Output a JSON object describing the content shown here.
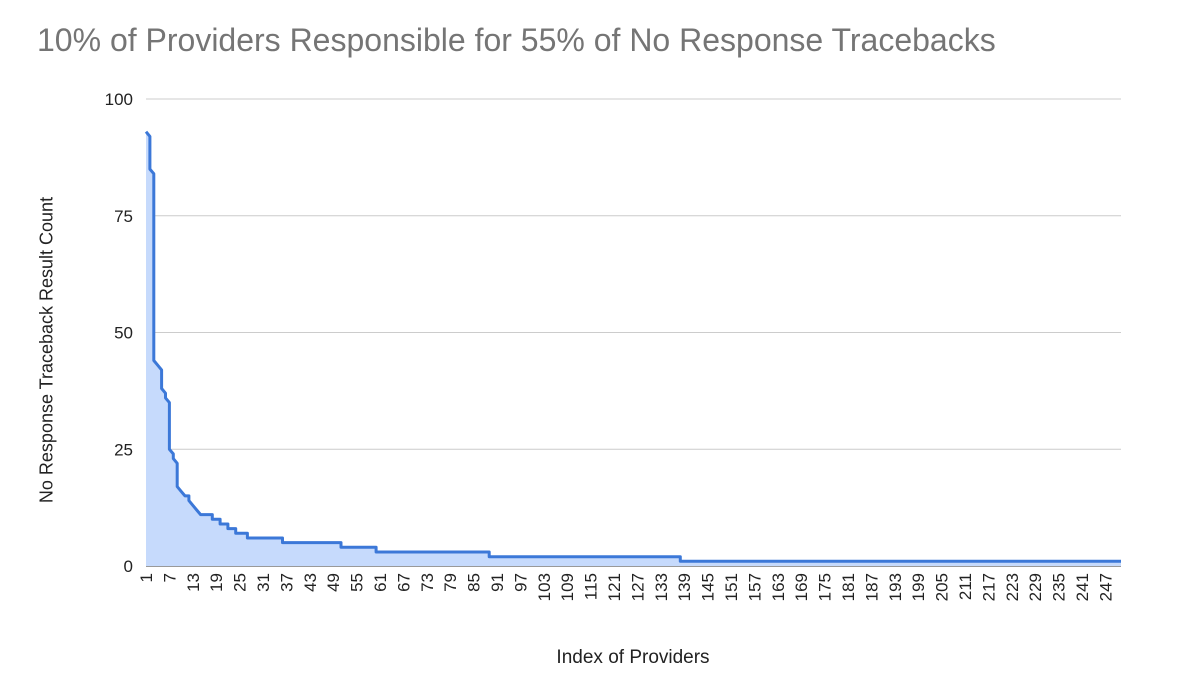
{
  "chart_data": {
    "type": "area",
    "title": "10% of Providers Responsible for 55% of No Response Tracebacks",
    "xlabel": "Index of Providers",
    "ylabel": "No Response Traceback Result Count",
    "ylim": [
      0,
      100
    ],
    "xlim": [
      1,
      251
    ],
    "y_ticks": [
      "0",
      "25",
      "50",
      "75",
      "100"
    ],
    "x_ticks": [
      "1",
      "7",
      "13",
      "19",
      "25",
      "31",
      "37",
      "43",
      "49",
      "55",
      "61",
      "67",
      "73",
      "79",
      "85",
      "91",
      "97",
      "103",
      "109",
      "115",
      "121",
      "127",
      "133",
      "139",
      "145",
      "151",
      "157",
      "163",
      "169",
      "175",
      "181",
      "187",
      "193",
      "199",
      "205",
      "211",
      "217",
      "223",
      "229",
      "235",
      "241",
      "247"
    ],
    "grid": true,
    "legend": "none",
    "series": [
      {
        "color": "#3c78d8",
        "fill": "#c6dafc",
        "points": [
          [
            1,
            93
          ],
          [
            2,
            92
          ],
          [
            2,
            85
          ],
          [
            3,
            84
          ],
          [
            3,
            44
          ],
          [
            4,
            43
          ],
          [
            5,
            42
          ],
          [
            5,
            38
          ],
          [
            6,
            37
          ],
          [
            6,
            36
          ],
          [
            7,
            35
          ],
          [
            7,
            25
          ],
          [
            8,
            24
          ],
          [
            8,
            23
          ],
          [
            9,
            22
          ],
          [
            9,
            17
          ],
          [
            10,
            16
          ],
          [
            11,
            15
          ],
          [
            12,
            15
          ],
          [
            12,
            14
          ],
          [
            13,
            13
          ],
          [
            14,
            12
          ],
          [
            15,
            11
          ],
          [
            18,
            11
          ],
          [
            18,
            10
          ],
          [
            20,
            10
          ],
          [
            20,
            9
          ],
          [
            22,
            9
          ],
          [
            22,
            8
          ],
          [
            24,
            8
          ],
          [
            24,
            7
          ],
          [
            27,
            7
          ],
          [
            27,
            6
          ],
          [
            36,
            6
          ],
          [
            36,
            5
          ],
          [
            51,
            5
          ],
          [
            51,
            4
          ],
          [
            60,
            4
          ],
          [
            60,
            3
          ],
          [
            89,
            3
          ],
          [
            89,
            2
          ],
          [
            138,
            2
          ],
          [
            138,
            1
          ],
          [
            251,
            1
          ]
        ]
      }
    ]
  }
}
